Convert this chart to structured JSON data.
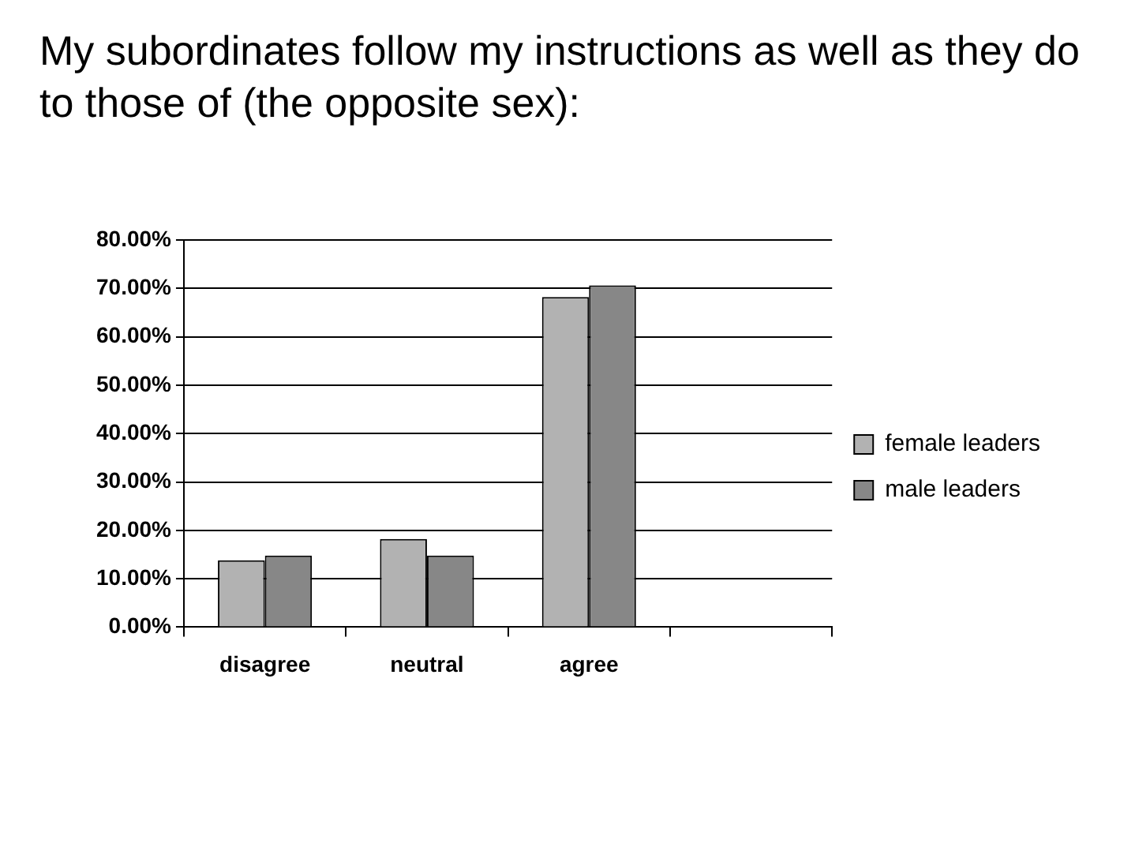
{
  "chart_data": {
    "type": "bar",
    "title": "My subordinates follow my instructions as well as they do to those of (the opposite  sex):",
    "categories": [
      "disagree",
      "neutral",
      "agree",
      null
    ],
    "series": [
      {
        "name": "female leaders",
        "color": "#b2b2b2",
        "values": [
          13.8,
          18.2,
          68.2,
          null
        ]
      },
      {
        "name": "male leaders",
        "color": "#878787",
        "values": [
          14.8,
          14.8,
          70.6,
          null
        ]
      }
    ],
    "ylim": [
      0,
      80
    ],
    "yticks": [
      {
        "value": 0,
        "label": "0.00%"
      },
      {
        "value": 10,
        "label": "10.00%"
      },
      {
        "value": 20,
        "label": "20.00%"
      },
      {
        "value": 30,
        "label": "30.00%"
      },
      {
        "value": 40,
        "label": "40.00%"
      },
      {
        "value": 50,
        "label": "50.00%"
      },
      {
        "value": 60,
        "label": "60.00%"
      },
      {
        "value": 70,
        "label": "70.00%"
      },
      {
        "value": 80,
        "label": "80.00%"
      }
    ],
    "grid": "y",
    "legend": "right"
  }
}
